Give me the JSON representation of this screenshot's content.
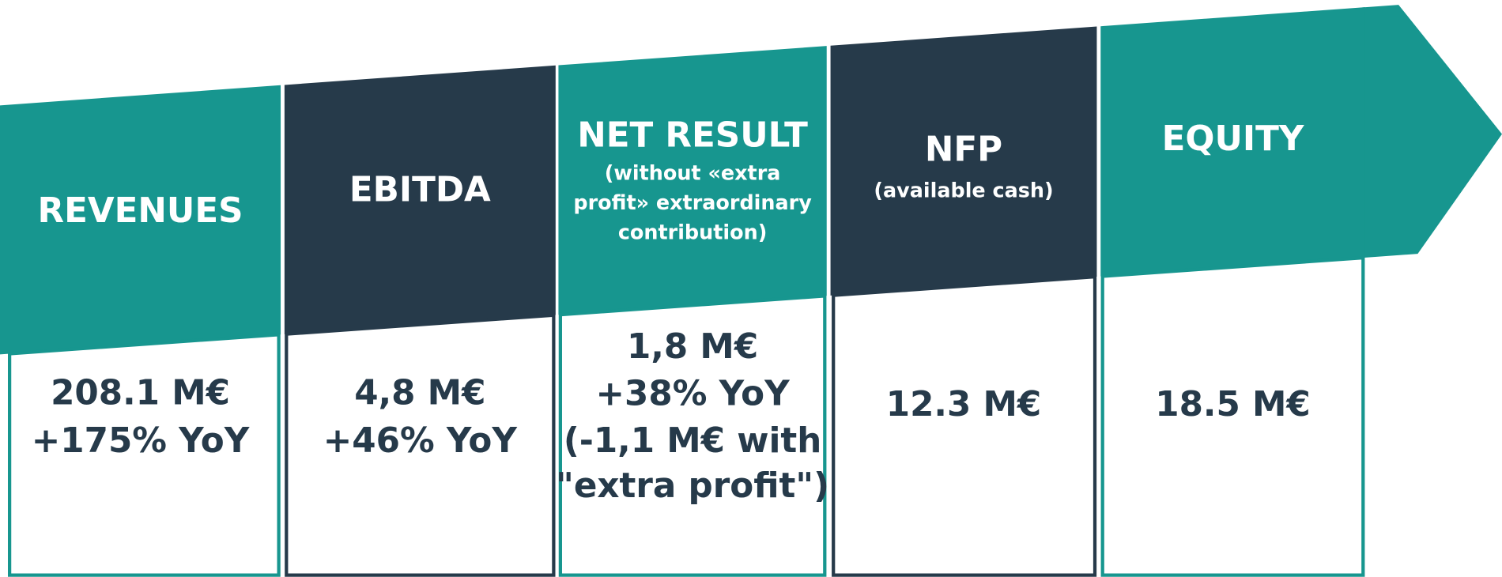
{
  "panels": [
    {
      "title": "REVENUES",
      "subtitle_lines": [],
      "value_lines": [
        "208.1 M€",
        "+175% YoY"
      ]
    },
    {
      "title": "EBITDA",
      "subtitle_lines": [],
      "value_lines": [
        "4,8 M€",
        "+46% YoY"
      ]
    },
    {
      "title": "NET RESULT",
      "subtitle_lines": [
        "(without «extra",
        "profit» extraordinary",
        "contribution)"
      ],
      "value_lines": [
        "1,8 M€",
        "+38% YoY",
        "(-1,1 M€ with",
        "\"extra profit\")"
      ]
    },
    {
      "title": "NFP",
      "subtitle_lines": [
        "(available cash)"
      ],
      "value_lines": [
        "12.3 M€"
      ]
    },
    {
      "title": "EQUITY",
      "subtitle_lines": [],
      "value_lines": [
        "18.5 M€"
      ]
    }
  ]
}
